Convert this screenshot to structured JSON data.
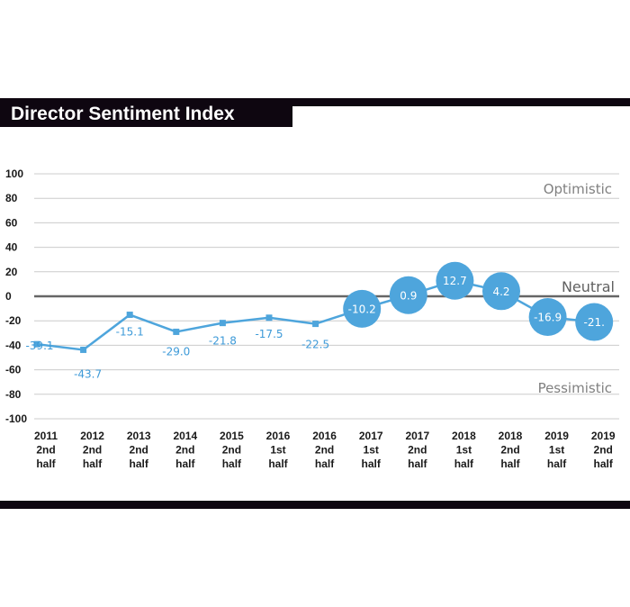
{
  "chart_data": {
    "type": "line",
    "title": "Director Sentiment Index",
    "categories": [
      [
        "2011",
        "2nd",
        "half"
      ],
      [
        "2012",
        "2nd",
        "half"
      ],
      [
        "2013",
        "2nd",
        "half"
      ],
      [
        "2014",
        "2nd",
        "half"
      ],
      [
        "2015",
        "2nd",
        "half"
      ],
      [
        "2016",
        "1st",
        "half"
      ],
      [
        "2016",
        "2nd",
        "half"
      ],
      [
        "2017",
        "1st",
        "half"
      ],
      [
        "2017",
        "2nd",
        "half"
      ],
      [
        "2018",
        "1st",
        "half"
      ],
      [
        "2018",
        "2nd",
        "half"
      ],
      [
        "2019",
        "1st",
        "half"
      ],
      [
        "2019",
        "2nd",
        "half"
      ]
    ],
    "values": [
      -39.1,
      -43.7,
      -15.1,
      -29.0,
      -21.8,
      -17.5,
      -22.5,
      -10.2,
      0.9,
      12.7,
      4.2,
      -16.9,
      -21.0
    ],
    "data_labels": [
      "-39.1",
      "-43.7",
      "-15.1",
      "-29.0",
      "-21.8",
      "-17.5",
      "-22.5",
      "-10.2",
      "0.9",
      "12.7",
      "4.2",
      "-16.9",
      "-21."
    ],
    "highlighted_from_index": 7,
    "ylim": [
      -100,
      100
    ],
    "yticks": [
      "100",
      "80",
      "60",
      "40",
      "20",
      "0",
      "-20",
      "-40",
      "-60",
      "-80",
      "-100"
    ],
    "zone_labels": {
      "top": "Optimistic",
      "zero": "Neutral",
      "bottom": "Pessimistic"
    },
    "grid": true,
    "colors": {
      "line": "#4ea5dc",
      "label_plain": "#3d9ad8",
      "bubble_text": "#ffffff",
      "zero_line": "#666666",
      "grid": "#cccccc",
      "band": "#0e0610"
    }
  }
}
